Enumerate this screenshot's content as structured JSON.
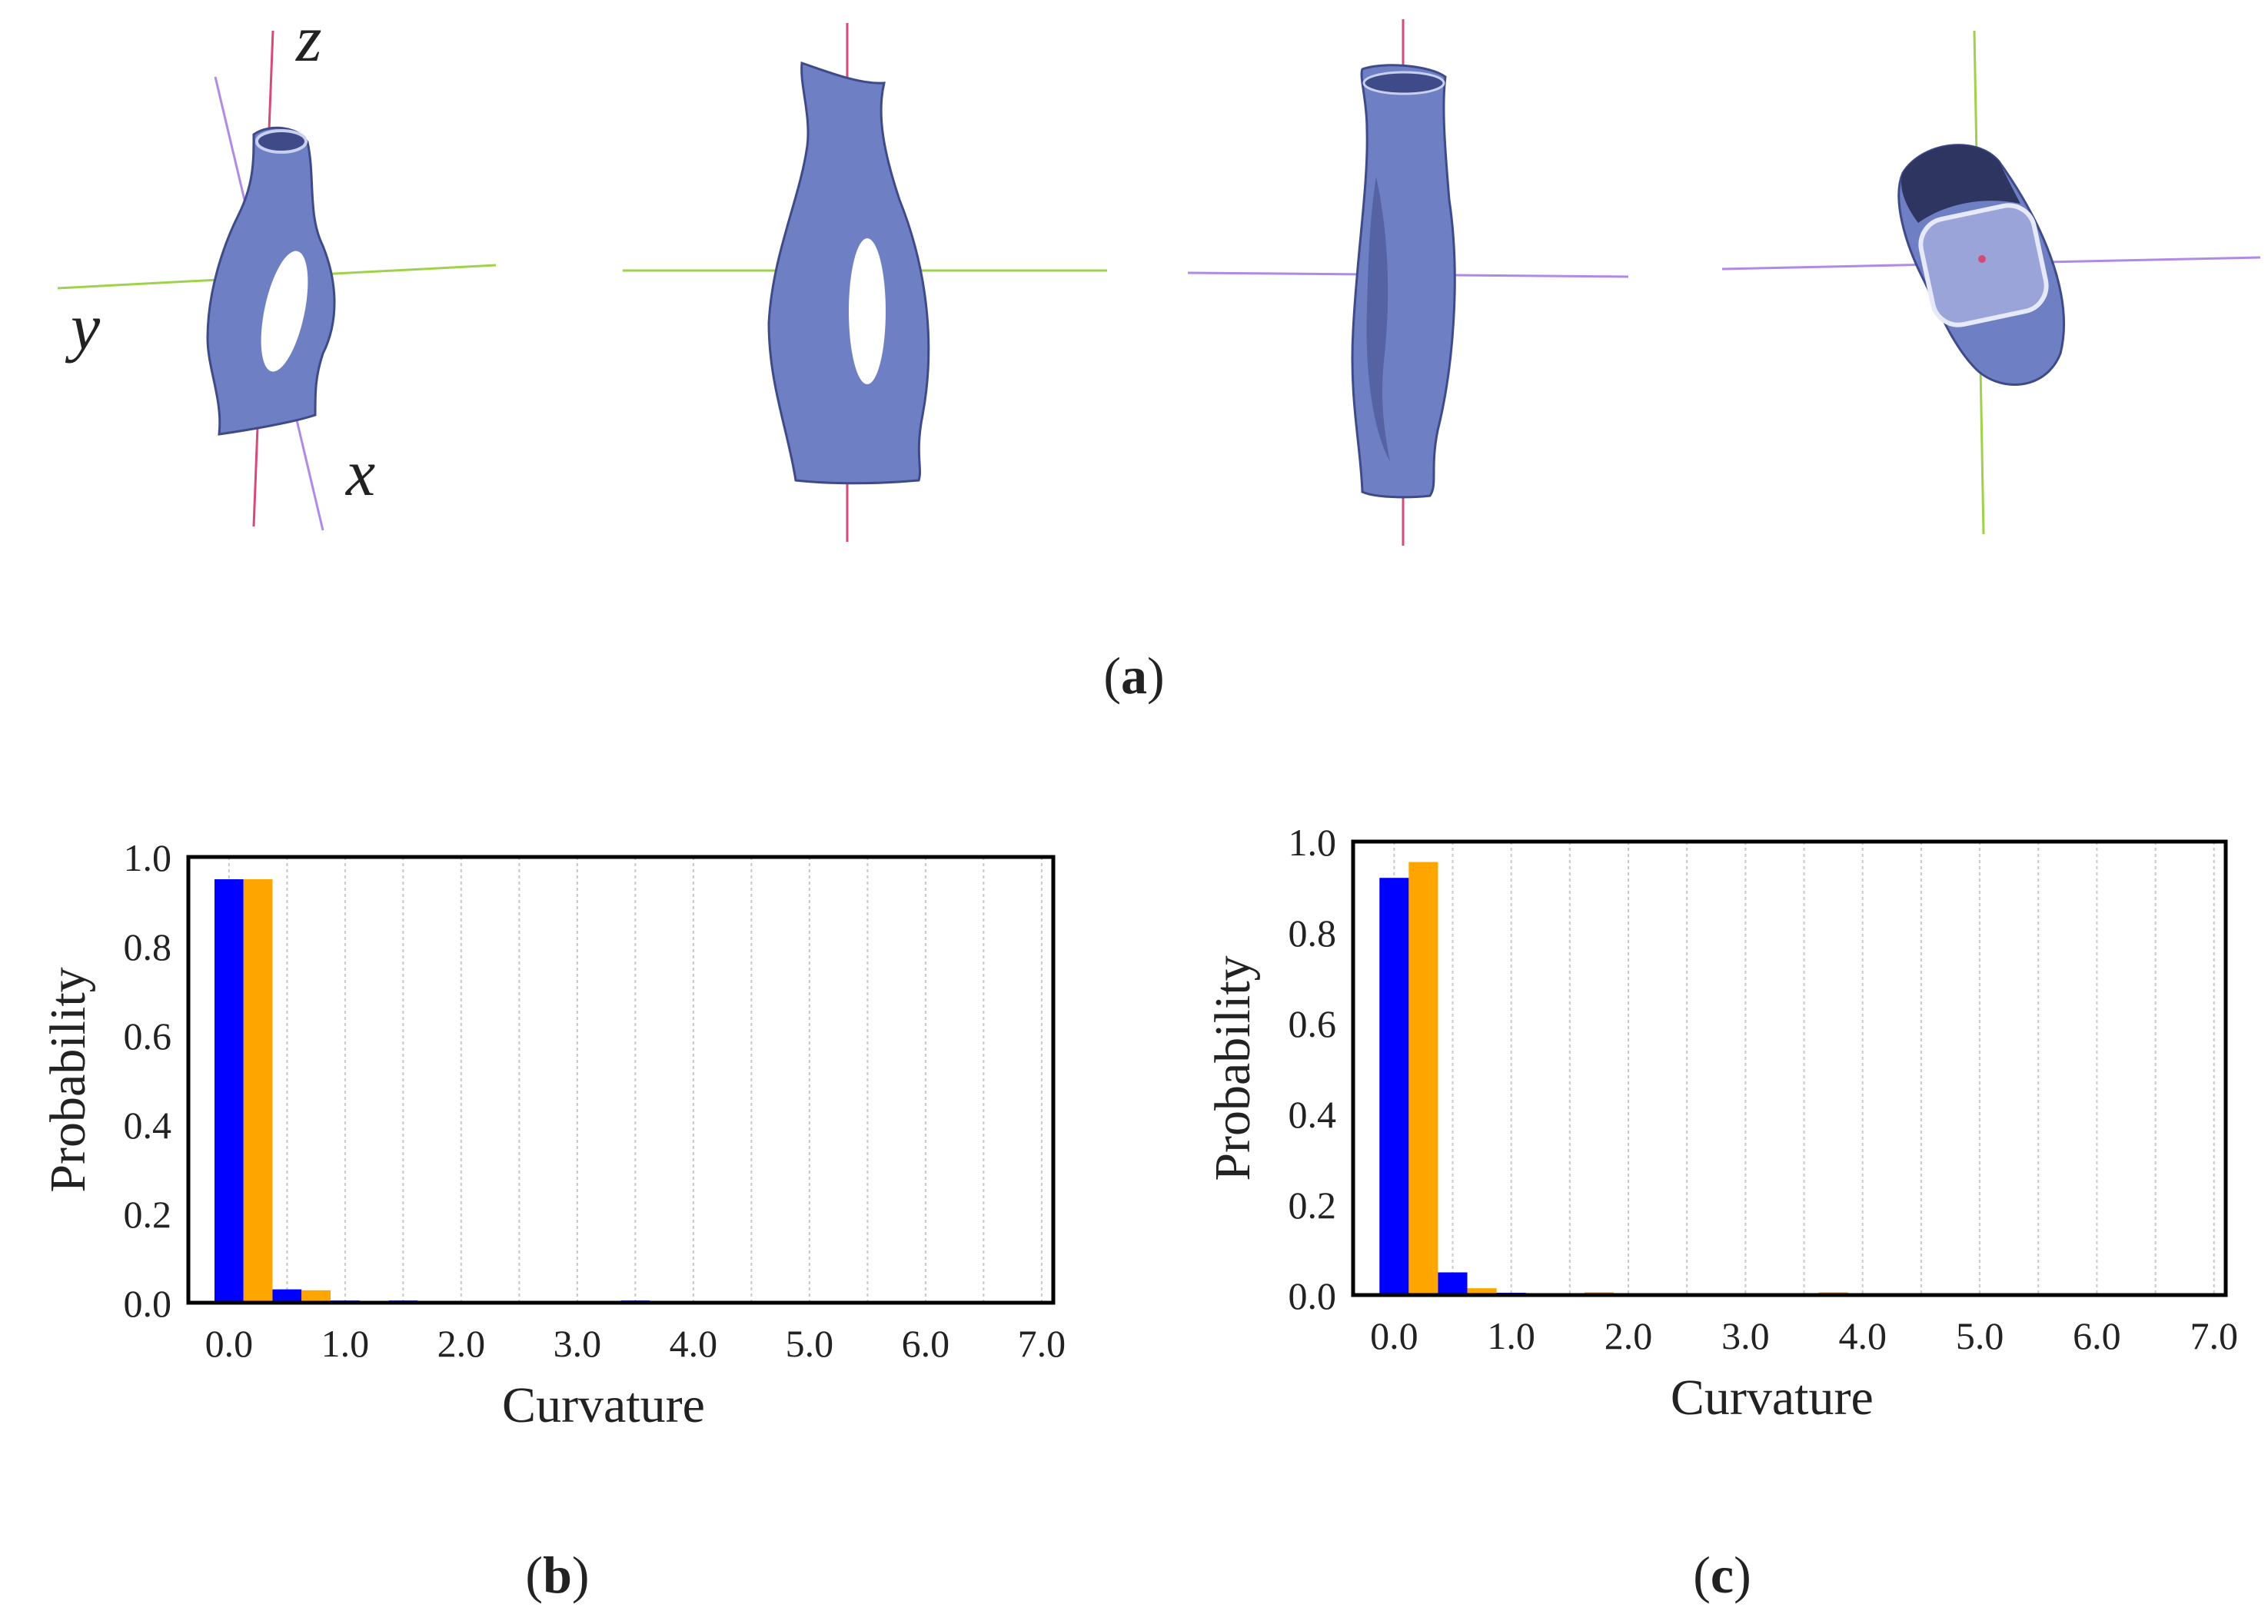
{
  "panel_a": {
    "axis_labels": {
      "x": "x",
      "y": "y",
      "z": "z"
    },
    "caption": {
      "open": "(",
      "letter": "a",
      "close": ")"
    }
  },
  "colors": {
    "series_1": "#0000ff",
    "series_2": "#ffa500",
    "mesh_body": "#6f7fc4",
    "mesh_shadow": "#3f4a88",
    "axis_red": "#d64a78",
    "axis_green": "#9fd24a",
    "axis_violet": "#b08ae6"
  },
  "chart_data": [
    {
      "id": "b",
      "type": "bar",
      "xlabel": "Curvature",
      "ylabel": "Probability",
      "x_ticks": [
        "0.0",
        "1.0",
        "2.0",
        "3.0",
        "4.0",
        "5.0",
        "6.0",
        "7.0"
      ],
      "y_ticks": [
        "0.0",
        "0.2",
        "0.4",
        "0.6",
        "0.8",
        "1.0"
      ],
      "xlim": [
        -0.35,
        7.1
      ],
      "ylim": [
        0,
        1.0
      ],
      "grid": "vertical dashed",
      "bin_centers": [
        0.125,
        0.625,
        1.125,
        1.625,
        2.125,
        2.625,
        3.125,
        3.625
      ],
      "series": [
        {
          "values": [
            0.95,
            0.03,
            0.005,
            0.005,
            0.0,
            0.0,
            0.0,
            0.005
          ]
        },
        {
          "values": [
            0.95,
            0.028,
            0.0,
            0.0,
            0.0,
            0.0,
            0.002,
            0.0
          ]
        }
      ],
      "caption": {
        "open": "(",
        "letter": "b",
        "close": ")"
      }
    },
    {
      "id": "c",
      "type": "bar",
      "xlabel": "Curvature",
      "ylabel": "Probability",
      "x_ticks": [
        "0.0",
        "1.0",
        "2.0",
        "3.0",
        "4.0",
        "5.0",
        "6.0",
        "7.0"
      ],
      "y_ticks": [
        "0.0",
        "0.2",
        "0.4",
        "0.6",
        "0.8",
        "1.0"
      ],
      "xlim": [
        -0.35,
        7.1
      ],
      "ylim": [
        0,
        1.0
      ],
      "grid": "vertical dashed",
      "bin_centers": [
        0.125,
        0.625,
        1.125,
        1.625,
        2.125,
        2.625,
        3.125,
        3.625
      ],
      "series": [
        {
          "values": [
            0.92,
            0.05,
            0.005,
            0.003,
            0.0,
            0.0,
            0.003,
            0.003
          ]
        },
        {
          "values": [
            0.955,
            0.015,
            0.003,
            0.006,
            0.0,
            0.0,
            0.002,
            0.006
          ]
        }
      ],
      "caption": {
        "open": "(",
        "letter": "c",
        "close": ")"
      }
    }
  ]
}
